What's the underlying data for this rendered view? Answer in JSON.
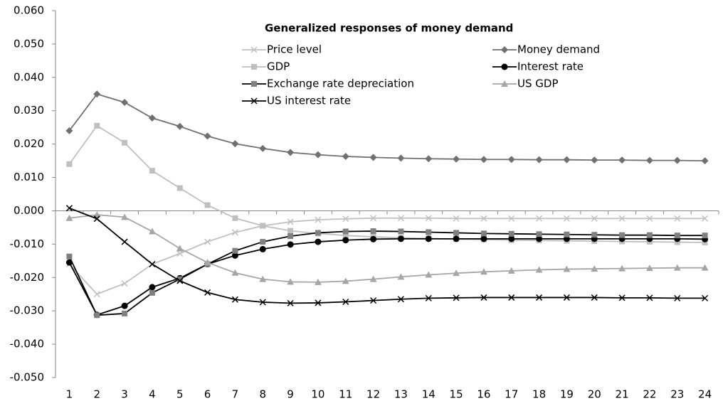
{
  "chart_data": {
    "type": "line",
    "title": "Generalized responses of money demand",
    "categories": [
      "1",
      "2",
      "3",
      "4",
      "5",
      "6",
      "7",
      "8",
      "9",
      "10",
      "11",
      "12",
      "13",
      "14",
      "15",
      "16",
      "17",
      "18",
      "19",
      "20",
      "21",
      "22",
      "23",
      "24"
    ],
    "ylim": [
      -0.05,
      0.06
    ],
    "yticks": [
      {
        "value": -0.05,
        "label": "-0.050"
      },
      {
        "value": -0.04,
        "label": "-0.040"
      },
      {
        "value": -0.03,
        "label": "-0.030"
      },
      {
        "value": -0.02,
        "label": "-0.020"
      },
      {
        "value": -0.01,
        "label": "-0.010"
      },
      {
        "value": 0,
        "label": "0.000"
      },
      {
        "value": 0.01,
        "label": "0.010"
      },
      {
        "value": 0.02,
        "label": "0.020"
      },
      {
        "value": 0.03,
        "label": "0.030"
      },
      {
        "value": 0.04,
        "label": "0.040"
      },
      {
        "value": 0.05,
        "label": "0.050"
      },
      {
        "value": 0.06,
        "label": "0.060"
      }
    ],
    "series": [
      {
        "name": "Price level",
        "color": "#c0c0c0",
        "line_color": "#c0c0c0",
        "marker": "x",
        "values": [
          -0.016,
          -0.025,
          -0.0218,
          -0.016,
          -0.0128,
          -0.0093,
          -0.0065,
          -0.0045,
          -0.0033,
          -0.0027,
          -0.0024,
          -0.0022,
          -0.0022,
          -0.0022,
          -0.0023,
          -0.0023,
          -0.0023,
          -0.0023,
          -0.0023,
          -0.0023,
          -0.0023,
          -0.0023,
          -0.0023,
          -0.0023
        ]
      },
      {
        "name": "Money demand",
        "color": "#707070",
        "line_color": "#707070",
        "marker": "diamond",
        "values": [
          0.024,
          0.035,
          0.0325,
          0.0278,
          0.0253,
          0.0224,
          0.0201,
          0.0187,
          0.0175,
          0.0168,
          0.0163,
          0.016,
          0.0158,
          0.0156,
          0.0155,
          0.0154,
          0.0154,
          0.0153,
          0.0153,
          0.0152,
          0.0152,
          0.0151,
          0.0151,
          0.015
        ]
      },
      {
        "name": "GDP",
        "color": "#bfbfbf",
        "line_color": "#bfbfbf",
        "marker": "square",
        "values": [
          0.014,
          0.0255,
          0.0204,
          0.012,
          0.0068,
          0.0017,
          -0.0022,
          -0.0045,
          -0.006,
          -0.0068,
          -0.0074,
          -0.0078,
          -0.0081,
          -0.0083,
          -0.0085,
          -0.0086,
          -0.0088,
          -0.0089,
          -0.009,
          -0.0091,
          -0.0092,
          -0.0093,
          -0.0094,
          -0.0095
        ]
      },
      {
        "name": "Interest rate",
        "color": "#000000",
        "line_color": "#000000",
        "marker": "circle",
        "values": [
          -0.0155,
          -0.0312,
          -0.0285,
          -0.0229,
          -0.0202,
          -0.016,
          -0.0134,
          -0.0115,
          -0.0101,
          -0.0093,
          -0.0088,
          -0.0085,
          -0.0084,
          -0.0084,
          -0.0084,
          -0.0084,
          -0.0084,
          -0.0084,
          -0.0084,
          -0.0084,
          -0.0084,
          -0.0084,
          -0.0084,
          -0.0085
        ]
      },
      {
        "name": "Exchange rate depreciation",
        "color": "#808080",
        "line_color": "#000000",
        "marker": "square",
        "values": [
          -0.0137,
          -0.0313,
          -0.0308,
          -0.0246,
          -0.0205,
          -0.016,
          -0.012,
          -0.0093,
          -0.0076,
          -0.0066,
          -0.0062,
          -0.0061,
          -0.0062,
          -0.0064,
          -0.0066,
          -0.0068,
          -0.0069,
          -0.007,
          -0.0071,
          -0.0072,
          -0.0073,
          -0.0073,
          -0.0074,
          -0.0074
        ]
      },
      {
        "name": "US GDP",
        "color": "#a6a6a6",
        "line_color": "#a6a6a6",
        "marker": "triangle",
        "values": [
          -0.0022,
          -0.0012,
          -0.0019,
          -0.0062,
          -0.0113,
          -0.0155,
          -0.0186,
          -0.0205,
          -0.0213,
          -0.0214,
          -0.0211,
          -0.0205,
          -0.0198,
          -0.0192,
          -0.0187,
          -0.0183,
          -0.018,
          -0.0177,
          -0.0175,
          -0.0174,
          -0.0173,
          -0.0172,
          -0.0171,
          -0.0171
        ]
      },
      {
        "name": "US interest rate",
        "color": "#000000",
        "line_color": "#000000",
        "marker": "x",
        "values": [
          0.0008,
          -0.0024,
          -0.0093,
          -0.016,
          -0.021,
          -0.0245,
          -0.0266,
          -0.0274,
          -0.0277,
          -0.0276,
          -0.0273,
          -0.0269,
          -0.0265,
          -0.0262,
          -0.0261,
          -0.026,
          -0.026,
          -0.026,
          -0.026,
          -0.026,
          -0.0261,
          -0.0261,
          -0.0262,
          -0.0262
        ]
      }
    ]
  }
}
